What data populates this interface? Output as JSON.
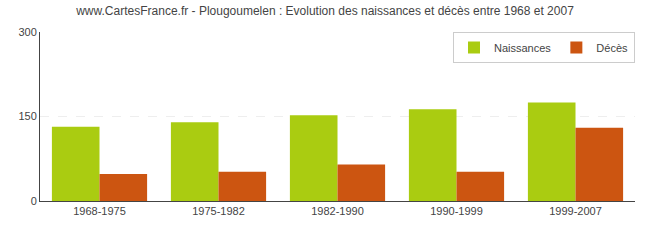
{
  "chart_data": {
    "type": "bar",
    "title": "www.CartesFrance.fr - Plougoumelen : Evolution des naissances et décès entre 1968 et 2007",
    "categories": [
      "1968-1975",
      "1975-1982",
      "1982-1990",
      "1990-1999",
      "1999-2007"
    ],
    "series": [
      {
        "name": "Naissances",
        "color": "#aacc11",
        "values": [
          132,
          140,
          152,
          163,
          175
        ]
      },
      {
        "name": "Décès",
        "color": "#cc5511",
        "values": [
          48,
          52,
          65,
          52,
          130
        ]
      }
    ],
    "ylim": [
      0,
      300
    ],
    "yticks": [
      0,
      150,
      300
    ],
    "grid": true,
    "legend": "upper right"
  }
}
